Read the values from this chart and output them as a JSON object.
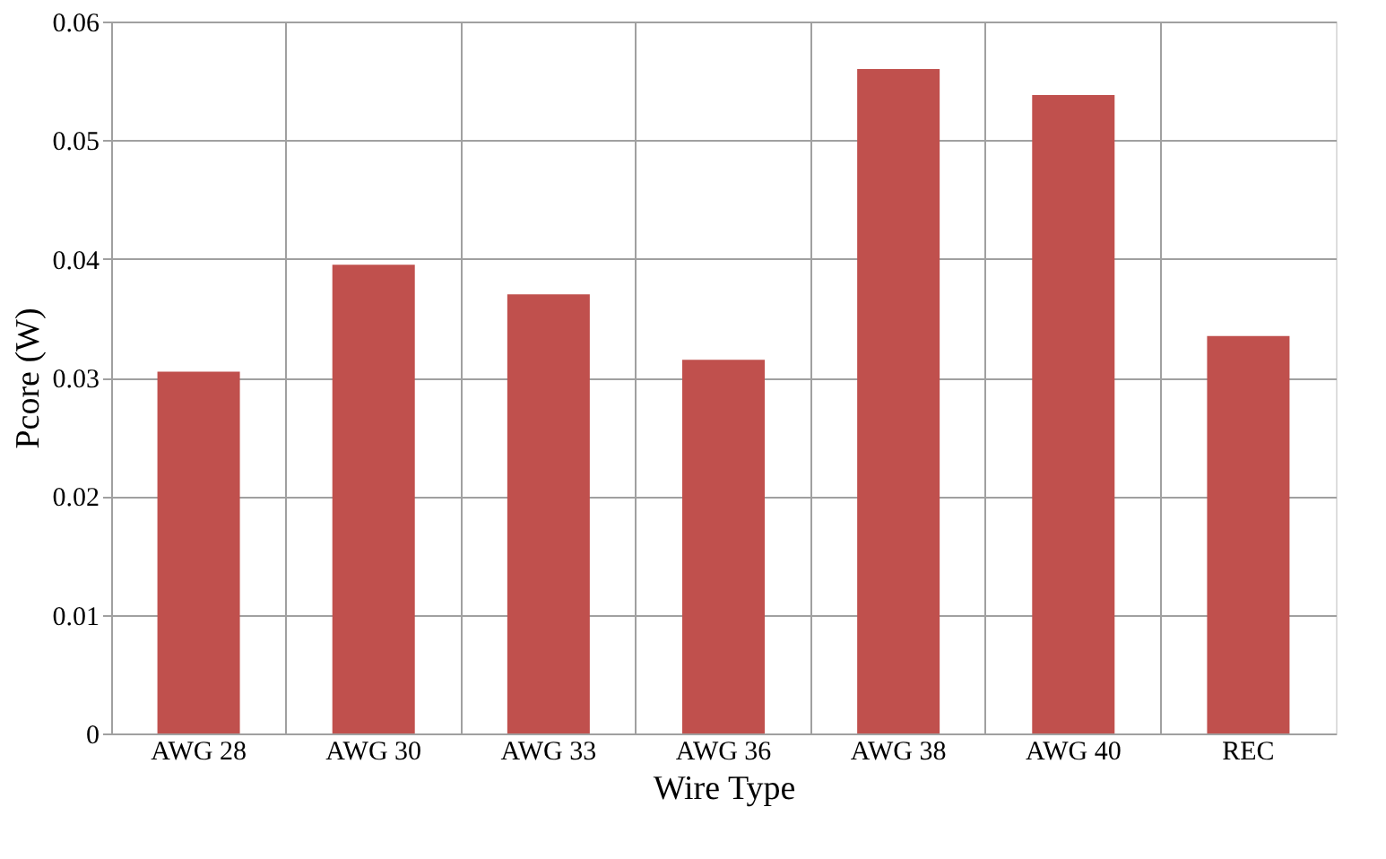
{
  "chart_data": {
    "type": "bar",
    "xlabel": "Wire Type",
    "ylabel": "Pcore (W)",
    "categories": [
      "AWG 28",
      "AWG 30",
      "AWG 33",
      "AWG 36",
      "AWG 38",
      "AWG 40",
      "REC"
    ],
    "values": [
      0.0305,
      0.0395,
      0.037,
      0.0315,
      0.056,
      0.0538,
      0.0335
    ],
    "color": "#c0504d",
    "ylim": [
      0,
      0.06
    ],
    "yticks": [
      {
        "value": 0,
        "label": "0"
      },
      0.01,
      0.02,
      0.03,
      0.04,
      0.05,
      0.06
    ],
    "grid": true
  }
}
